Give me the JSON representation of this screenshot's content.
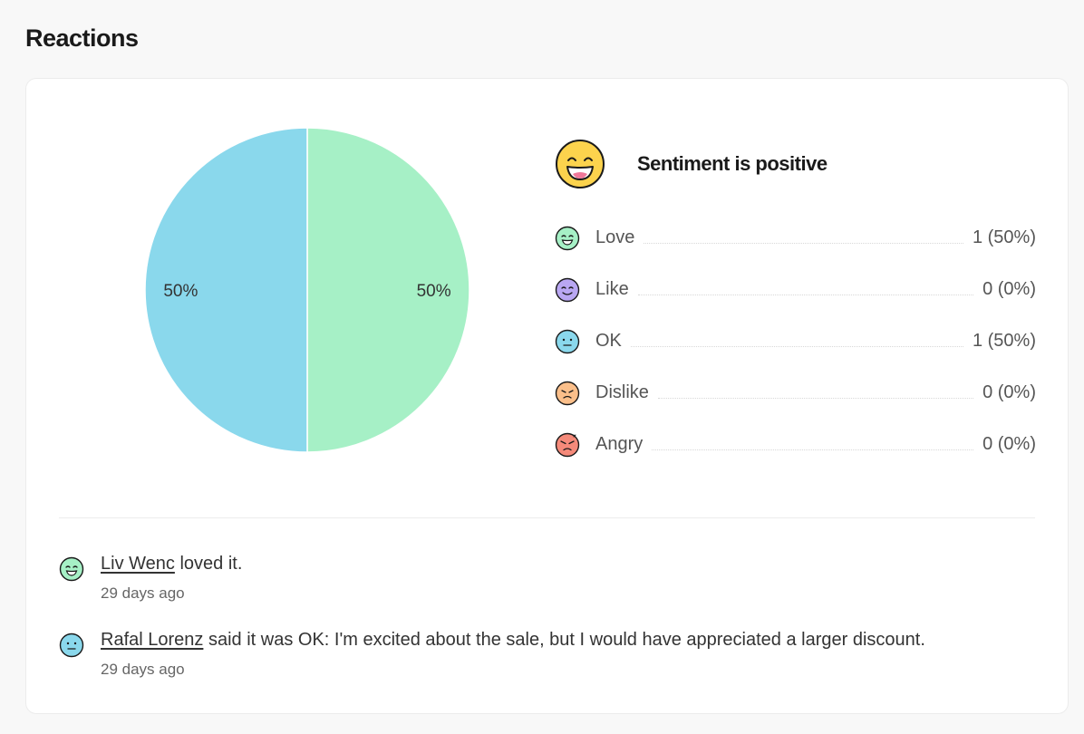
{
  "page": {
    "title": "Reactions"
  },
  "sentiment": {
    "text": "Sentiment is positive",
    "icon": "grinning-face-icon",
    "color": "#fcd34d"
  },
  "chart_data": {
    "type": "pie",
    "slices": [
      {
        "name": "Love",
        "value": 1,
        "percent": 50,
        "label": "50%",
        "color": "#a6f0c6"
      },
      {
        "name": "OK",
        "value": 1,
        "percent": 50,
        "label": "50%",
        "color": "#8ad8ec"
      }
    ]
  },
  "breakdown": [
    {
      "label": "Love",
      "value": "1 (50%)",
      "icon": "love-face-icon",
      "color": "#a6f0c6"
    },
    {
      "label": "Like",
      "value": "0 (0%)",
      "icon": "like-face-icon",
      "color": "#b9a7f2"
    },
    {
      "label": "OK",
      "value": "1 (50%)",
      "icon": "ok-face-icon",
      "color": "#8ad8ec"
    },
    {
      "label": "Dislike",
      "value": "0 (0%)",
      "icon": "dislike-face-icon",
      "color": "#fbbf8a"
    },
    {
      "label": "Angry",
      "value": "0 (0%)",
      "icon": "angry-face-icon",
      "color": "#f58a7a"
    }
  ],
  "reactions": [
    {
      "name": "Liv Wenc",
      "text": " loved it.",
      "time": "29 days ago",
      "icon": "love-face-icon"
    },
    {
      "name": "Rafal Lorenz",
      "text": " said it was OK: I'm excited about the sale, but I would have appreciated a larger discount.",
      "time": "29 days ago",
      "icon": "ok-face-icon"
    }
  ]
}
